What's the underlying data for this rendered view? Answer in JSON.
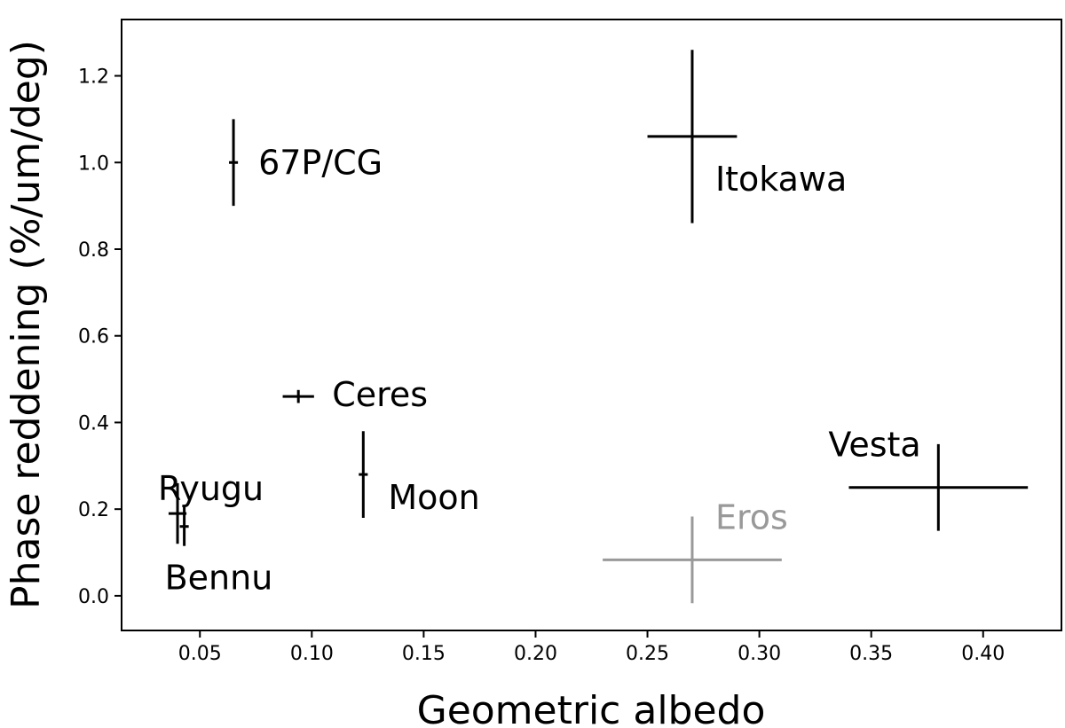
{
  "chart_data": {
    "type": "scatter",
    "xlabel": "Geometric albedo",
    "ylabel": "Phase reddening (%/um/deg)",
    "xlim": [
      0.015,
      0.435
    ],
    "ylim": [
      -0.08,
      1.33
    ],
    "x_ticks": [
      "0.05",
      "0.10",
      "0.15",
      "0.20",
      "0.25",
      "0.30",
      "0.35",
      "0.40"
    ],
    "y_ticks": [
      "0.0",
      "0.2",
      "0.4",
      "0.6",
      "0.8",
      "1.0",
      "1.2"
    ],
    "grid": false,
    "points": [
      {
        "label": "67P/CG",
        "x": 0.065,
        "y": 1.0,
        "xerr": 0.002,
        "yerr": 0.1,
        "color": "#000000"
      },
      {
        "label": "Itokawa",
        "x": 0.27,
        "y": 1.06,
        "xerr": 0.02,
        "yerr": 0.2,
        "color": "#000000"
      },
      {
        "label": "Ceres",
        "x": 0.094,
        "y": 0.46,
        "xerr": 0.007,
        "yerr": 0.015,
        "color": "#000000"
      },
      {
        "label": "Moon",
        "x": 0.123,
        "y": 0.28,
        "xerr": 0.002,
        "yerr": 0.1,
        "color": "#000000"
      },
      {
        "label": "Ryugu",
        "x": 0.04,
        "y": 0.19,
        "xerr": 0.004,
        "yerr": 0.07,
        "color": "#000000"
      },
      {
        "label": "Bennu",
        "x": 0.043,
        "y": 0.16,
        "xerr": 0.002,
        "yerr": 0.045,
        "color": "#000000"
      },
      {
        "label": "Vesta",
        "x": 0.38,
        "y": 0.25,
        "xerr": 0.04,
        "yerr": 0.1,
        "color": "#000000"
      },
      {
        "label": "Eros",
        "x": 0.27,
        "y": 0.083,
        "xerr": 0.04,
        "yerr": 0.1,
        "color": "#999999"
      }
    ]
  }
}
